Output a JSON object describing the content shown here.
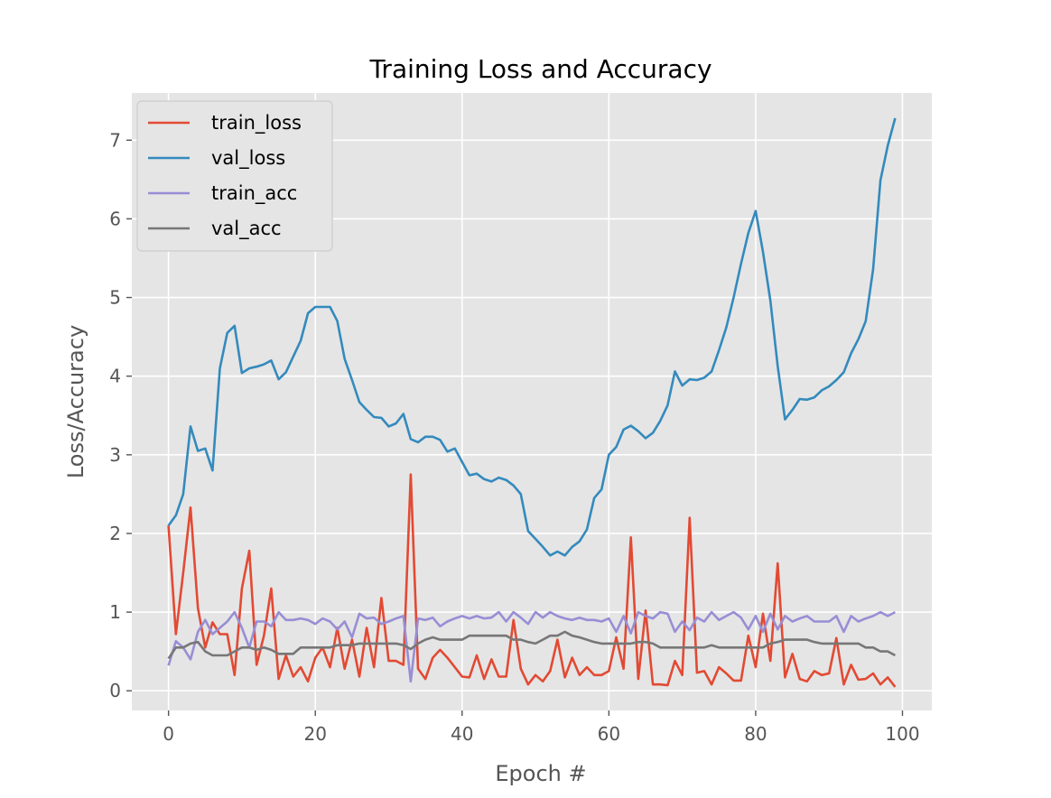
{
  "chart_data": {
    "type": "line",
    "title": "Training Loss and Accuracy",
    "xlabel": "Epoch #",
    "ylabel": "Loss/Accuracy",
    "xlim": [
      -5,
      104
    ],
    "ylim": [
      -0.25,
      7.6
    ],
    "xticks": [
      0,
      20,
      40,
      60,
      80,
      100
    ],
    "yticks": [
      0,
      1,
      2,
      3,
      4,
      5,
      6,
      7
    ],
    "grid": true,
    "legend_position": "upper-left",
    "colors": {
      "plot_background": "#e5e5e5",
      "grid": "#ffffff"
    },
    "x": [
      0,
      1,
      2,
      3,
      4,
      5,
      6,
      7,
      8,
      9,
      10,
      11,
      12,
      13,
      14,
      15,
      16,
      17,
      18,
      19,
      20,
      21,
      22,
      23,
      24,
      25,
      26,
      27,
      28,
      29,
      30,
      31,
      32,
      33,
      34,
      35,
      36,
      37,
      38,
      39,
      40,
      41,
      42,
      43,
      44,
      45,
      46,
      47,
      48,
      49,
      50,
      51,
      52,
      53,
      54,
      55,
      56,
      57,
      58,
      59,
      60,
      61,
      62,
      63,
      64,
      65,
      66,
      67,
      68,
      69,
      70,
      71,
      72,
      73,
      74,
      75,
      76,
      77,
      78,
      79,
      80,
      81,
      82,
      83,
      84,
      85,
      86,
      87,
      88,
      89,
      90,
      91,
      92,
      93,
      94,
      95,
      96,
      97,
      98,
      99
    ],
    "series": [
      {
        "name": "train_loss",
        "color": "#e24a33",
        "values": [
          2.1,
          0.72,
          1.5,
          2.33,
          1.05,
          0.55,
          0.87,
          0.72,
          0.72,
          0.2,
          1.3,
          1.78,
          0.33,
          0.7,
          1.3,
          0.15,
          0.45,
          0.18,
          0.3,
          0.12,
          0.42,
          0.55,
          0.3,
          0.8,
          0.28,
          0.65,
          0.18,
          0.8,
          0.3,
          1.18,
          0.38,
          0.38,
          0.33,
          2.75,
          0.28,
          0.15,
          0.42,
          0.52,
          0.42,
          0.3,
          0.18,
          0.17,
          0.45,
          0.15,
          0.4,
          0.18,
          0.18,
          0.9,
          0.28,
          0.08,
          0.2,
          0.12,
          0.25,
          0.65,
          0.17,
          0.42,
          0.2,
          0.3,
          0.2,
          0.2,
          0.25,
          0.68,
          0.28,
          1.95,
          0.15,
          1.02,
          0.08,
          0.08,
          0.07,
          0.38,
          0.2,
          2.2,
          0.23,
          0.25,
          0.08,
          0.3,
          0.22,
          0.13,
          0.13,
          0.7,
          0.3,
          0.98,
          0.38,
          1.62,
          0.17,
          0.47,
          0.15,
          0.12,
          0.25,
          0.2,
          0.22,
          0.67,
          0.08,
          0.33,
          0.14,
          0.15,
          0.22,
          0.08,
          0.17,
          0.05
        ]
      },
      {
        "name": "val_loss",
        "color": "#348abd",
        "values": [
          2.1,
          2.23,
          2.5,
          3.36,
          3.05,
          3.08,
          2.8,
          4.1,
          4.55,
          4.64,
          4.04,
          4.1,
          4.12,
          4.15,
          4.2,
          3.96,
          4.05,
          4.25,
          4.45,
          4.8,
          4.88,
          4.88,
          4.88,
          4.7,
          4.22,
          3.95,
          3.67,
          3.57,
          3.48,
          3.47,
          3.36,
          3.4,
          3.52,
          3.2,
          3.16,
          3.23,
          3.23,
          3.19,
          3.04,
          3.08,
          2.91,
          2.74,
          2.76,
          2.69,
          2.66,
          2.71,
          2.68,
          2.61,
          2.5,
          2.03,
          1.93,
          1.83,
          1.72,
          1.77,
          1.72,
          1.83,
          1.9,
          2.05,
          2.45,
          2.56,
          3.0,
          3.1,
          3.32,
          3.37,
          3.3,
          3.21,
          3.28,
          3.43,
          3.63,
          4.06,
          3.88,
          3.96,
          3.95,
          3.98,
          4.06,
          4.33,
          4.62,
          5.0,
          5.43,
          5.82,
          6.1,
          5.58,
          4.96,
          4.13,
          3.45,
          3.57,
          3.71,
          3.7,
          3.73,
          3.82,
          3.87,
          3.95,
          4.05,
          4.29,
          4.47,
          4.7,
          5.36,
          6.49,
          6.93,
          7.28
        ]
      },
      {
        "name": "train_acc",
        "color": "#988ed5",
        "values": [
          0.32,
          0.63,
          0.55,
          0.4,
          0.75,
          0.9,
          0.72,
          0.8,
          0.88,
          1.0,
          0.8,
          0.55,
          0.88,
          0.88,
          0.82,
          1.0,
          0.9,
          0.9,
          0.92,
          0.9,
          0.85,
          0.92,
          0.88,
          0.78,
          0.88,
          0.68,
          0.98,
          0.92,
          0.93,
          0.85,
          0.88,
          0.92,
          0.95,
          0.12,
          0.92,
          0.9,
          0.93,
          0.82,
          0.88,
          0.92,
          0.95,
          0.92,
          0.95,
          0.92,
          0.93,
          1.0,
          0.88,
          1.0,
          0.93,
          0.85,
          1.0,
          0.93,
          1.0,
          0.95,
          0.92,
          0.9,
          0.93,
          0.9,
          0.9,
          0.88,
          0.92,
          0.75,
          0.95,
          0.73,
          1.0,
          0.95,
          0.92,
          1.0,
          0.98,
          0.75,
          0.88,
          0.77,
          0.93,
          0.88,
          1.0,
          0.9,
          0.95,
          1.0,
          0.93,
          0.78,
          0.95,
          0.75,
          0.98,
          0.78,
          0.95,
          0.88,
          0.92,
          0.95,
          0.88,
          0.88,
          0.88,
          0.95,
          0.75,
          0.95,
          0.88,
          0.92,
          0.95,
          1.0,
          0.95,
          1.0
        ]
      },
      {
        "name": "val_acc",
        "color": "#777777",
        "values": [
          0.41,
          0.55,
          0.55,
          0.6,
          0.62,
          0.5,
          0.45,
          0.45,
          0.45,
          0.5,
          0.55,
          0.55,
          0.52,
          0.55,
          0.52,
          0.47,
          0.47,
          0.47,
          0.55,
          0.55,
          0.55,
          0.55,
          0.55,
          0.58,
          0.58,
          0.58,
          0.6,
          0.6,
          0.6,
          0.6,
          0.6,
          0.6,
          0.58,
          0.53,
          0.6,
          0.65,
          0.68,
          0.65,
          0.65,
          0.65,
          0.65,
          0.7,
          0.7,
          0.7,
          0.7,
          0.7,
          0.7,
          0.65,
          0.65,
          0.62,
          0.6,
          0.65,
          0.7,
          0.7,
          0.75,
          0.7,
          0.68,
          0.65,
          0.62,
          0.6,
          0.6,
          0.6,
          0.6,
          0.6,
          0.62,
          0.62,
          0.6,
          0.55,
          0.55,
          0.55,
          0.55,
          0.55,
          0.55,
          0.55,
          0.58,
          0.55,
          0.55,
          0.55,
          0.55,
          0.55,
          0.55,
          0.55,
          0.6,
          0.62,
          0.65,
          0.65,
          0.65,
          0.65,
          0.62,
          0.6,
          0.6,
          0.6,
          0.6,
          0.6,
          0.6,
          0.55,
          0.55,
          0.5,
          0.5,
          0.45
        ]
      }
    ]
  }
}
